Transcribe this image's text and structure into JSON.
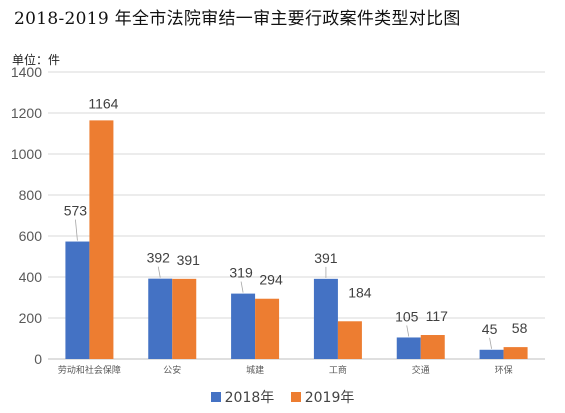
{
  "chart_data": {
    "type": "bar",
    "title": "2018-2019 年全市法院审结一审主要行政案件类型对比图",
    "unit_label": "单位：件",
    "categories": [
      "劳动和社会保障",
      "公安",
      "城建",
      "工商",
      "交通",
      "环保"
    ],
    "series": [
      {
        "name": "2018年",
        "color": "#4472C4",
        "values": [
          573,
          392,
          319,
          391,
          105,
          45
        ]
      },
      {
        "name": "2019年",
        "color": "#ED7D31",
        "values": [
          1164,
          391,
          294,
          184,
          117,
          58
        ]
      }
    ],
    "ylim": [
      0,
      1400
    ],
    "yticks": [
      0,
      200,
      400,
      600,
      800,
      1000,
      1200,
      1400
    ],
    "grid": true,
    "legend_position": "bottom"
  }
}
